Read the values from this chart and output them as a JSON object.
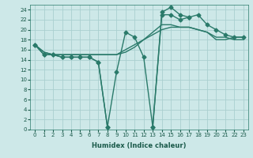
{
  "xlabel": "Humidex (Indice chaleur)",
  "bg_color": "#cde8e8",
  "grid_color": "#aacfcf",
  "line_color": "#2a7a6a",
  "xlim": [
    -0.5,
    23.5
  ],
  "ylim": [
    0,
    25
  ],
  "series": [
    {
      "x": [
        0,
        1,
        2,
        3,
        4,
        5,
        6,
        7,
        8,
        9,
        10,
        11,
        12,
        13,
        14,
        15,
        16,
        17,
        18,
        19,
        20,
        21,
        22,
        23
      ],
      "y": [
        17,
        15,
        15,
        14.5,
        14.5,
        14.5,
        14.5,
        13.5,
        0.5,
        11.5,
        19.5,
        18.5,
        14.5,
        0.5,
        23.5,
        24.5,
        23,
        22.5,
        23,
        21,
        20,
        19,
        18.5,
        18.5
      ],
      "marker": "D",
      "ms": 2.5,
      "lw": 1.0
    },
    {
      "x": [
        0,
        1,
        2,
        3,
        4,
        5,
        6,
        7,
        8
      ],
      "y": [
        17,
        15,
        15,
        14.5,
        14.5,
        14.5,
        14.5,
        13.5,
        0.5
      ],
      "x2": [
        13,
        14,
        15,
        16,
        17
      ],
      "y2": [
        0.5,
        23,
        23,
        22,
        22.5
      ],
      "marker": "D",
      "ms": 2.5,
      "lw": 1.0
    },
    {
      "x": [
        0,
        1,
        2,
        3,
        4,
        5,
        6,
        7,
        8,
        9,
        10,
        11,
        12,
        13,
        14,
        15,
        16,
        17,
        18,
        19,
        20,
        21,
        22,
        23
      ],
      "y": [
        17,
        15.5,
        15,
        15,
        15,
        15,
        15,
        15,
        15,
        15,
        15.5,
        16.5,
        18,
        19.5,
        21,
        21,
        20.5,
        20.5,
        20,
        19.5,
        18.5,
        18.5,
        18,
        18
      ],
      "marker": null,
      "ms": 0,
      "lw": 1.0
    },
    {
      "x": [
        0,
        1,
        2,
        3,
        4,
        5,
        6,
        7,
        8,
        9,
        10,
        11,
        12,
        13,
        14,
        15,
        16,
        17,
        18,
        19,
        20,
        21,
        22,
        23
      ],
      "y": [
        17,
        15.5,
        15,
        15,
        15,
        15,
        15,
        15,
        15,
        15,
        16,
        17,
        18,
        19,
        20,
        20.5,
        20.5,
        20.5,
        20,
        19.5,
        18,
        18,
        18.5,
        18.5
      ],
      "marker": null,
      "ms": 0,
      "lw": 1.0
    }
  ]
}
